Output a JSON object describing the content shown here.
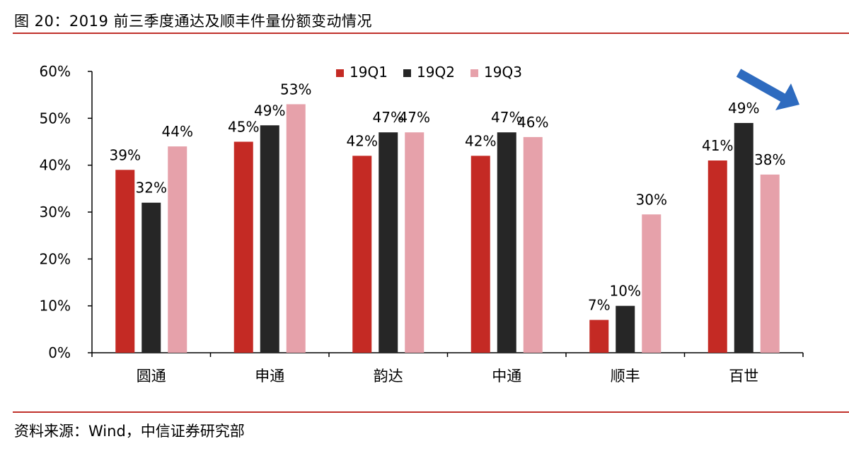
{
  "header": {
    "title": "图 20：2019 前三季度通达及顺丰件量份额变动情况"
  },
  "footer": {
    "source": "资料来源：Wind，中信证券研究部"
  },
  "chart_data": {
    "type": "bar",
    "categories": [
      "圆通",
      "申通",
      "韵达",
      "中通",
      "顺丰",
      "百世"
    ],
    "series": [
      {
        "name": "19Q1",
        "color": "#c42a24",
        "values": [
          39,
          45,
          42,
          42,
          7,
          41
        ],
        "labels": [
          "39%",
          "45%",
          "42%",
          "42%",
          "7%",
          "41%"
        ]
      },
      {
        "name": "19Q2",
        "color": "#262626",
        "values": [
          32,
          48.5,
          47,
          47,
          10,
          49
        ],
        "labels": [
          "32%",
          "49%",
          "47%",
          "47%",
          "10%",
          "49%"
        ]
      },
      {
        "name": "19Q3",
        "color": "#e6a1aa",
        "values": [
          44,
          53,
          47,
          46,
          29.5,
          38
        ],
        "labels": [
          "44%",
          "53%",
          "47%",
          "46%",
          "30%",
          "38%"
        ]
      }
    ],
    "ylim": [
      0,
      60
    ],
    "yticks": [
      "0%",
      "10%",
      "20%",
      "30%",
      "40%",
      "50%",
      "60%"
    ],
    "legend_position": "top-center",
    "grid": false,
    "annotation": {
      "type": "arrow",
      "direction": "down-right",
      "color": "#2e6bbf"
    }
  }
}
